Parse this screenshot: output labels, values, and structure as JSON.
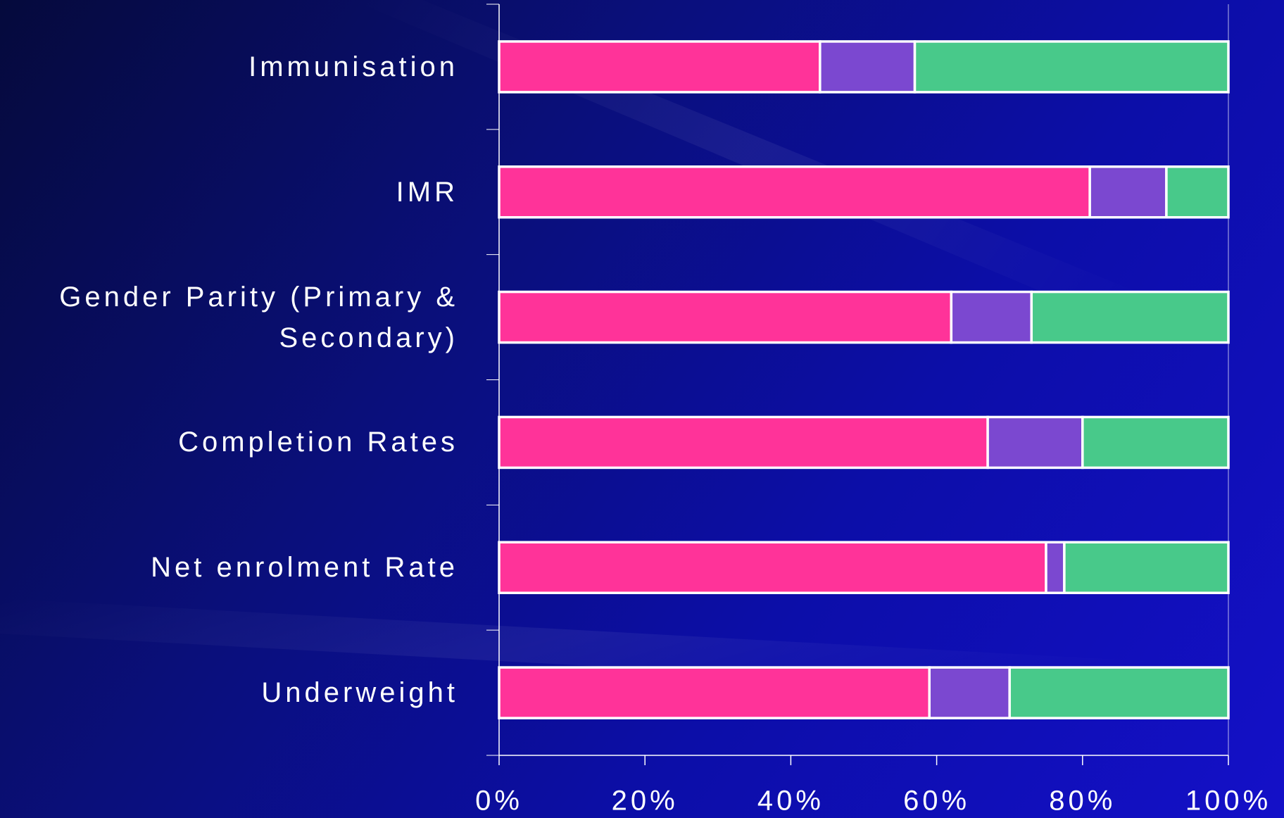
{
  "chart_data": {
    "type": "stacked-bar-horizontal",
    "categories": [
      "Immunisation",
      "IMR",
      "Gender Parity (Primary & Secondary)",
      "Completion Rates",
      "Net enrolment Rate",
      "Underweight"
    ],
    "series": [
      {
        "color": "#ff3399",
        "values": [
          44,
          81,
          62,
          67,
          75,
          59
        ]
      },
      {
        "color": "#7b48d0",
        "values": [
          13,
          10.5,
          11,
          13,
          2.5,
          11
        ]
      },
      {
        "color": "#48c98a",
        "values": [
          43,
          8.5,
          27,
          20,
          22.5,
          30
        ]
      }
    ],
    "xlim": [
      0,
      100
    ],
    "xticks": [
      {
        "value": 0,
        "label": "0%"
      },
      {
        "value": 20,
        "label": "20%"
      },
      {
        "value": 40,
        "label": "40%"
      },
      {
        "value": 60,
        "label": "60%"
      },
      {
        "value": 80,
        "label": "80%"
      },
      {
        "value": 100,
        "label": "100%"
      }
    ]
  }
}
